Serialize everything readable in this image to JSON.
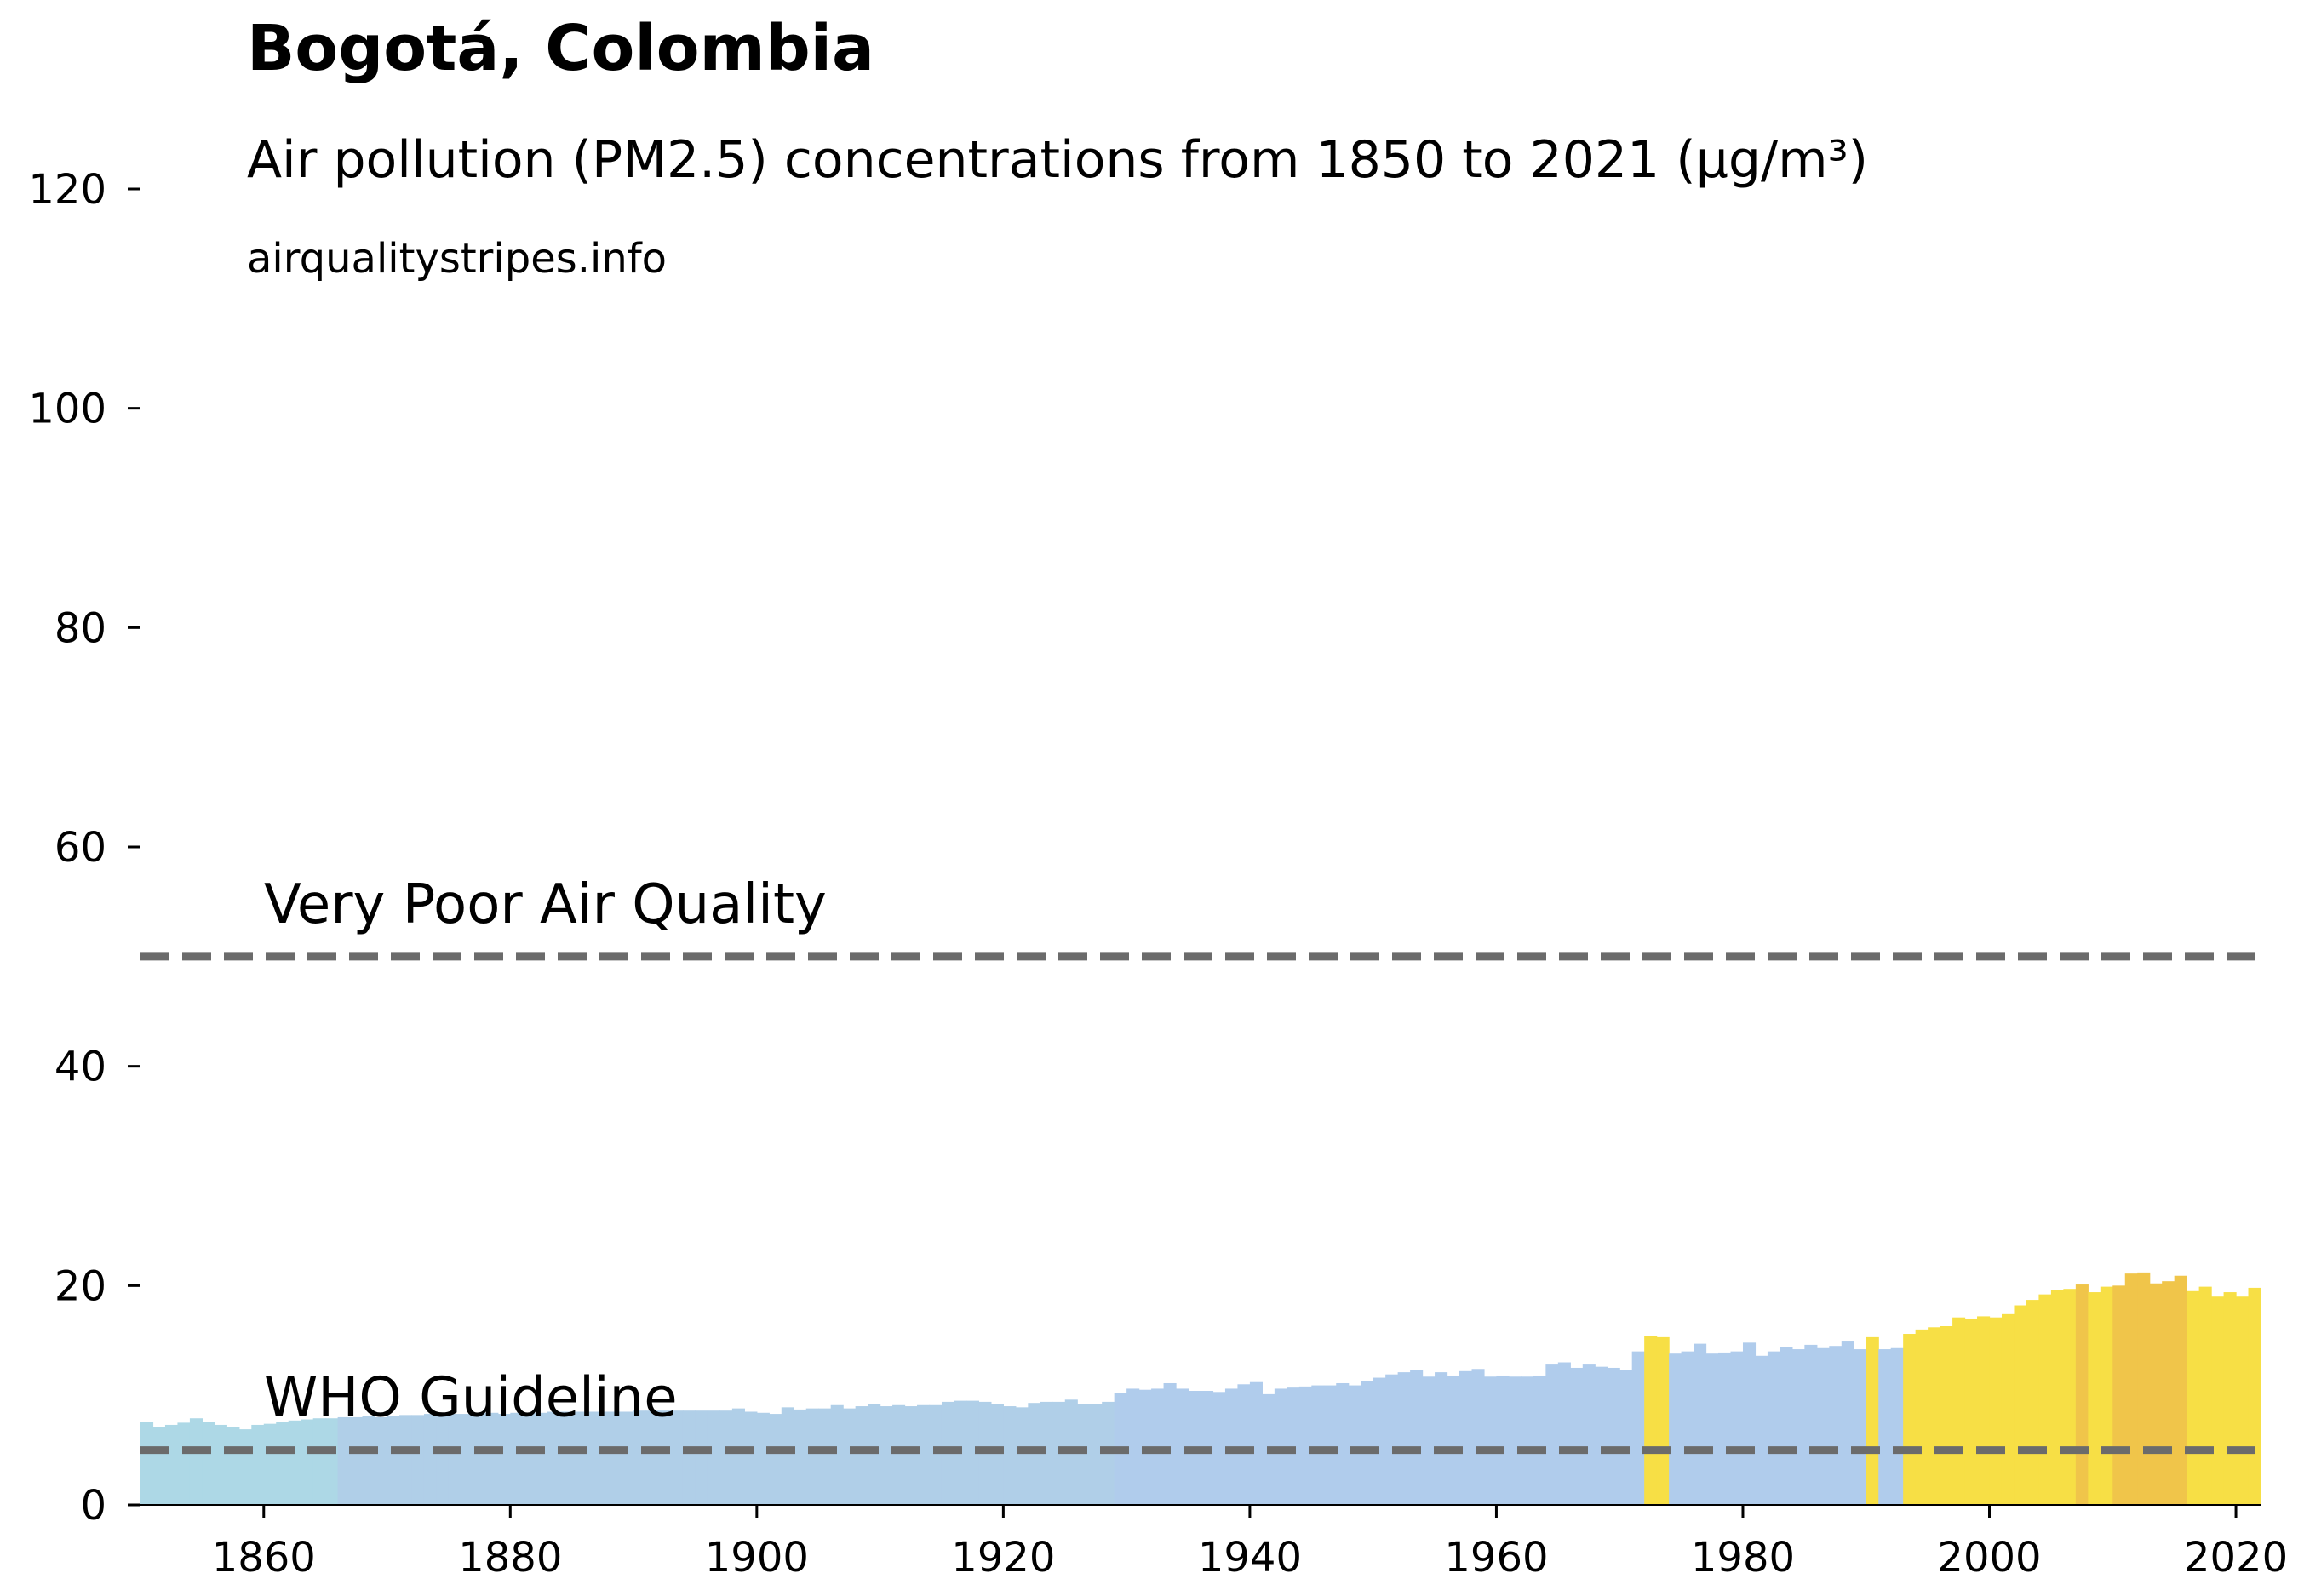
{
  "chart_data": {
    "type": "bar",
    "title": "Bogotá, Colombia",
    "subtitle": "Air pollution (PM2.5) concentrations from 1850 to 2021 (µg/m³)",
    "source": "airqualitystripes.info",
    "xlabel": "",
    "ylabel": "",
    "xlim": [
      1850,
      2022
    ],
    "ylim": [
      0,
      120
    ],
    "x_ticks": [
      1860,
      1880,
      1900,
      1920,
      1940,
      1960,
      1980,
      2000,
      2020
    ],
    "y_ticks": [
      0,
      20,
      40,
      60,
      80,
      100,
      120
    ],
    "grid": false,
    "legend": "none",
    "reference_lines": [
      {
        "label": "Very Poor Air Quality",
        "value": 50,
        "style": "dashed",
        "color": "#6b6b6b"
      },
      {
        "label": "WHO Guideline",
        "value": 5,
        "style": "dashed",
        "color": "#6b6b6b"
      }
    ],
    "years_start": 1850,
    "values": [
      7.6,
      7.1,
      7.3,
      7.5,
      7.9,
      7.6,
      7.3,
      7.1,
      6.9,
      7.3,
      7.4,
      7.6,
      7.7,
      7.8,
      7.9,
      7.9,
      8.0,
      8.0,
      8.1,
      8.0,
      8.1,
      8.2,
      8.2,
      8.3,
      8.3,
      8.3,
      8.3,
      8.4,
      8.4,
      8.3,
      8.4,
      8.4,
      8.4,
      8.5,
      8.5,
      8.5,
      8.5,
      8.5,
      8.5,
      8.5,
      8.6,
      8.6,
      8.6,
      8.6,
      8.6,
      8.6,
      8.6,
      8.6,
      8.8,
      8.5,
      8.4,
      8.3,
      8.9,
      8.7,
      8.8,
      8.8,
      9.1,
      8.8,
      9.0,
      9.2,
      9.0,
      9.1,
      9.0,
      9.1,
      9.1,
      9.4,
      9.5,
      9.5,
      9.4,
      9.2,
      9.0,
      8.9,
      9.3,
      9.4,
      9.4,
      9.6,
      9.2,
      9.2,
      9.4,
      10.2,
      10.6,
      10.5,
      10.6,
      11.1,
      10.6,
      10.4,
      10.4,
      10.3,
      10.6,
      11.0,
      11.2,
      10.1,
      10.6,
      10.7,
      10.8,
      10.9,
      10.9,
      11.1,
      10.9,
      11.3,
      11.6,
      11.9,
      12.1,
      12.3,
      11.7,
      12.1,
      11.8,
      12.2,
      12.4,
      11.7,
      11.8,
      11.7,
      11.7,
      11.8,
      12.8,
      13.0,
      12.5,
      12.8,
      12.6,
      12.5,
      12.3,
      14.0,
      15.4,
      15.3,
      13.8,
      14.0,
      14.7,
      13.8,
      13.9,
      14.0,
      14.8,
      13.6,
      14.0,
      14.4,
      14.2,
      14.6,
      14.3,
      14.5,
      14.9,
      14.2,
      15.3,
      14.2,
      14.3,
      15.6,
      16.0,
      16.2,
      16.3,
      17.1,
      17.0,
      17.2,
      17.1,
      17.4,
      18.2,
      18.7,
      19.2,
      19.6,
      19.7,
      20.1,
      19.4,
      19.9
    ],
    "extended_values_2010_2021": [
      20.0,
      21.1,
      21.2,
      20.2,
      20.4,
      20.9,
      19.5,
      19.9,
      19.0,
      19.4,
      19.0,
      19.8
    ],
    "color_bands": [
      {
        "from": 0,
        "to": 8,
        "color": "#add8e6"
      },
      {
        "from": 8,
        "to": 10,
        "color": "#b0cfe8"
      },
      {
        "from": 10,
        "to": 15,
        "color": "#b0ccec"
      },
      {
        "from": 15,
        "to": 20,
        "color": "#f7df45"
      },
      {
        "from": 20,
        "to": 30,
        "color": "#f0c54a"
      }
    ]
  }
}
